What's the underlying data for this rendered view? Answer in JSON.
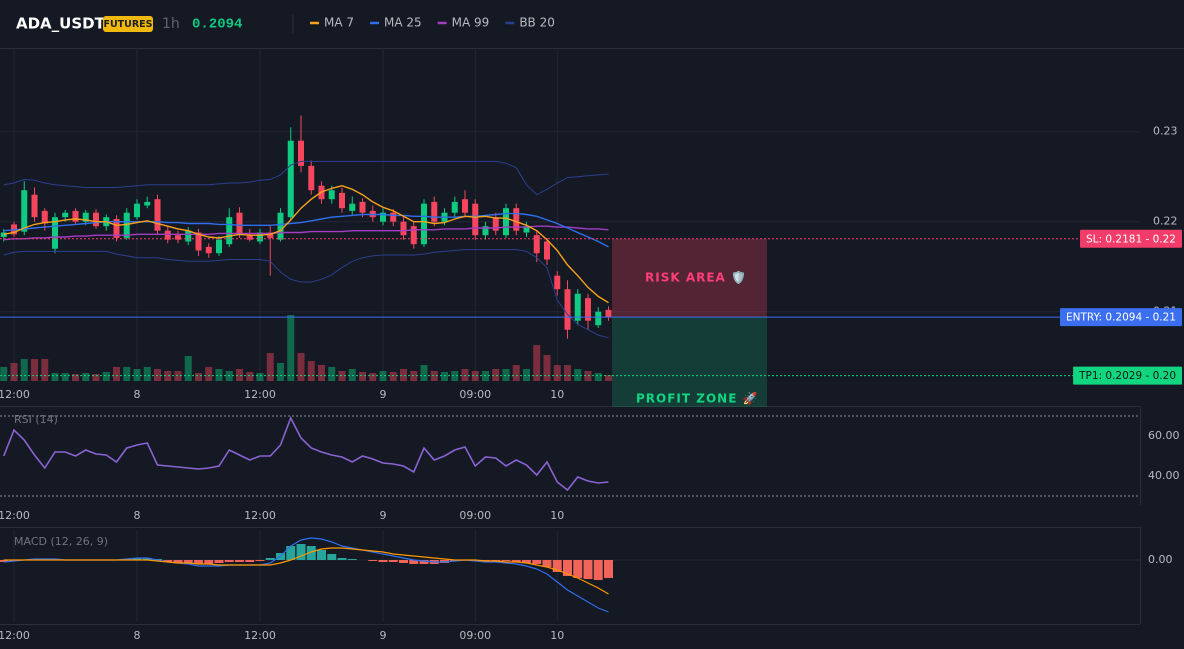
{
  "header": {
    "symbol": "ADA_USDT",
    "badge": "FUTURES",
    "interval": "1h",
    "price": "0.2094"
  },
  "chart_data": [
    {
      "type": "candlestick",
      "xlim": [
        -0.5,
        59.5
      ],
      "xticks": [
        {
          "value": 1,
          "label": "12:00"
        },
        {
          "value": 13,
          "label": "8"
        },
        {
          "value": 25,
          "label": "12:00"
        },
        {
          "value": 37,
          "label": "9"
        },
        {
          "value": 46,
          "label": "09:00"
        },
        {
          "value": 54,
          "label": "10"
        }
      ],
      "ylim": [
        0.2023,
        0.2393
      ],
      "yticks": [
        0.21,
        0.22,
        0.23
      ],
      "grid": true,
      "up_color": "#0ecb81",
      "down_color": "#f6465d",
      "open": [
        0.2183,
        0.2197,
        0.2189,
        0.223,
        0.2212,
        0.217,
        0.2205,
        0.2212,
        0.22,
        0.221,
        0.2195,
        0.2203,
        0.2182,
        0.2205,
        0.2218,
        0.2225,
        0.219,
        0.2185,
        0.2178,
        0.2188,
        0.2172,
        0.2165,
        0.2175,
        0.221,
        0.2185,
        0.2178,
        0.2188,
        0.218,
        0.2205,
        0.229,
        0.2262,
        0.224,
        0.2225,
        0.2232,
        0.2212,
        0.2222,
        0.2212,
        0.22,
        0.221,
        0.22,
        0.2195,
        0.2175,
        0.2222,
        0.22,
        0.221,
        0.2225,
        0.222,
        0.2185,
        0.2205,
        0.2185,
        0.2215,
        0.2188,
        0.2185,
        0.2178,
        0.214,
        0.2125,
        0.209,
        0.2115,
        0.2085,
        0.2102
      ],
      "high": [
        0.2192,
        0.22,
        0.2245,
        0.2238,
        0.2215,
        0.221,
        0.2213,
        0.2215,
        0.2213,
        0.2214,
        0.2208,
        0.2207,
        0.2215,
        0.2225,
        0.2228,
        0.223,
        0.2195,
        0.219,
        0.2194,
        0.2192,
        0.2176,
        0.2184,
        0.2215,
        0.2216,
        0.2192,
        0.2192,
        0.2195,
        0.2215,
        0.2305,
        0.2318,
        0.2268,
        0.2245,
        0.224,
        0.2238,
        0.2228,
        0.2226,
        0.2218,
        0.2215,
        0.2214,
        0.2205,
        0.22,
        0.2225,
        0.2228,
        0.2215,
        0.2228,
        0.2235,
        0.2225,
        0.22,
        0.221,
        0.222,
        0.222,
        0.22,
        0.219,
        0.2182,
        0.2145,
        0.2135,
        0.2125,
        0.212,
        0.2105,
        0.2106
      ],
      "low": [
        0.2178,
        0.2183,
        0.2185,
        0.22,
        0.219,
        0.2165,
        0.22,
        0.2198,
        0.2196,
        0.2192,
        0.219,
        0.2178,
        0.218,
        0.2202,
        0.2215,
        0.2185,
        0.2176,
        0.2176,
        0.2174,
        0.2162,
        0.216,
        0.2162,
        0.2172,
        0.2182,
        0.2178,
        0.2175,
        0.214,
        0.2178,
        0.2202,
        0.2255,
        0.223,
        0.222,
        0.222,
        0.221,
        0.2208,
        0.2205,
        0.22,
        0.2196,
        0.2195,
        0.218,
        0.217,
        0.2172,
        0.2195,
        0.2196,
        0.2205,
        0.2205,
        0.218,
        0.218,
        0.2185,
        0.2182,
        0.2185,
        0.2183,
        0.2155,
        0.2152,
        0.2118,
        0.207,
        0.2085,
        0.208,
        0.2082,
        0.209
      ],
      "close": [
        0.2188,
        0.2186,
        0.2235,
        0.2205,
        0.2198,
        0.2205,
        0.221,
        0.22,
        0.221,
        0.2195,
        0.2205,
        0.2182,
        0.221,
        0.222,
        0.2222,
        0.219,
        0.218,
        0.218,
        0.219,
        0.2168,
        0.2165,
        0.218,
        0.2205,
        0.2185,
        0.218,
        0.2188,
        0.2182,
        0.221,
        0.229,
        0.2262,
        0.2235,
        0.2225,
        0.2235,
        0.2215,
        0.222,
        0.221,
        0.2205,
        0.221,
        0.22,
        0.2185,
        0.2175,
        0.222,
        0.22,
        0.221,
        0.2222,
        0.221,
        0.2185,
        0.2195,
        0.219,
        0.2215,
        0.219,
        0.2195,
        0.2165,
        0.2158,
        0.2125,
        0.208,
        0.212,
        0.209,
        0.21,
        0.2094
      ],
      "vlim": [
        0,
        100
      ],
      "volume": [
        14,
        18,
        22,
        22,
        22,
        8,
        8,
        7,
        8,
        7,
        9,
        14,
        14,
        12,
        14,
        12,
        10,
        10,
        25,
        8,
        14,
        12,
        10,
        12,
        9,
        8,
        28,
        18,
        66,
        28,
        20,
        16,
        14,
        10,
        12,
        9,
        8,
        10,
        9,
        12,
        10,
        16,
        10,
        9,
        10,
        12,
        10,
        10,
        12,
        12,
        16,
        12,
        36,
        26,
        16,
        16,
        12,
        10,
        8,
        6
      ],
      "series": [
        {
          "name": "MA 7",
          "color": "#f7a21b",
          "values": [
            0.2186,
            0.2188,
            0.2193,
            0.2197,
            0.2199,
            0.22,
            0.2202,
            0.2203,
            0.2202,
            0.22,
            0.22,
            0.2196,
            0.2197,
            0.2199,
            0.2201,
            0.2198,
            0.2195,
            0.2192,
            0.219,
            0.2186,
            0.2183,
            0.2182,
            0.2184,
            0.2186,
            0.2185,
            0.2185,
            0.2186,
            0.219,
            0.2202,
            0.2215,
            0.2225,
            0.2233,
            0.2237,
            0.224,
            0.2236,
            0.223,
            0.2222,
            0.2216,
            0.2212,
            0.2206,
            0.22,
            0.22,
            0.2198,
            0.2199,
            0.2203,
            0.2206,
            0.2205,
            0.2206,
            0.2204,
            0.2204,
            0.22,
            0.2196,
            0.219,
            0.218,
            0.2168,
            0.2152,
            0.214,
            0.2127,
            0.2117,
            0.211
          ]
        },
        {
          "name": "MA 25",
          "color": "#2f6fed",
          "values": [
            0.219,
            0.2191,
            0.2192,
            0.2193,
            0.2194,
            0.2195,
            0.2196,
            0.2197,
            0.2198,
            0.2199,
            0.22,
            0.22,
            0.22,
            0.22,
            0.22,
            0.22,
            0.2199,
            0.2199,
            0.2198,
            0.2198,
            0.2198,
            0.2197,
            0.2197,
            0.2196,
            0.2196,
            0.2196,
            0.2196,
            0.2197,
            0.2198,
            0.2199,
            0.2201,
            0.2203,
            0.2205,
            0.2206,
            0.2207,
            0.2208,
            0.2208,
            0.2208,
            0.2207,
            0.2207,
            0.2206,
            0.2206,
            0.2205,
            0.2205,
            0.2205,
            0.2206,
            0.2206,
            0.2207,
            0.2208,
            0.2209,
            0.2209,
            0.2208,
            0.2206,
            0.2202,
            0.2198,
            0.2193,
            0.2188,
            0.2183,
            0.2178,
            0.2172
          ]
        },
        {
          "name": "MA 99",
          "color": "#a43cc4",
          "values": [
            0.218,
            0.2181,
            0.2181,
            0.2182,
            0.2182,
            0.2183,
            0.2183,
            0.2184,
            0.2184,
            0.2185,
            0.2185,
            0.2185,
            0.2185,
            0.2186,
            0.2186,
            0.2186,
            0.2186,
            0.2186,
            0.2186,
            0.2186,
            0.2186,
            0.2187,
            0.2187,
            0.2187,
            0.2187,
            0.2187,
            0.2187,
            0.2188,
            0.2188,
            0.2188,
            0.2189,
            0.2189,
            0.2189,
            0.2189,
            0.219,
            0.219,
            0.219,
            0.219,
            0.219,
            0.219,
            0.2191,
            0.2191,
            0.2191,
            0.2192,
            0.2192,
            0.2192,
            0.2193,
            0.2193,
            0.2193,
            0.2194,
            0.2194,
            0.2194,
            0.2195,
            0.2195,
            0.2194,
            0.2194,
            0.2193,
            0.2192,
            0.2192,
            0.2191
          ]
        },
        {
          "name": "BB 20",
          "color": "#2b3f8f",
          "upper": [
            0.2241,
            0.2243,
            0.2247,
            0.2246,
            0.2243,
            0.2241,
            0.224,
            0.2239,
            0.2238,
            0.2238,
            0.2238,
            0.2238,
            0.2239,
            0.224,
            0.2241,
            0.2241,
            0.2241,
            0.2241,
            0.2241,
            0.2241,
            0.2241,
            0.2242,
            0.2243,
            0.2243,
            0.2244,
            0.2246,
            0.2247,
            0.2252,
            0.2263,
            0.2267,
            0.2267,
            0.2267,
            0.2267,
            0.2267,
            0.2267,
            0.2267,
            0.2267,
            0.2267,
            0.2267,
            0.2267,
            0.2267,
            0.2267,
            0.2267,
            0.2267,
            0.2267,
            0.2267,
            0.2267,
            0.2267,
            0.2267,
            0.2265,
            0.226,
            0.2241,
            0.223,
            0.2236,
            0.2243,
            0.2249,
            0.225,
            0.2251,
            0.2252,
            0.2253
          ],
          "lower": [
            0.2163,
            0.2166,
            0.2167,
            0.2167,
            0.2167,
            0.2167,
            0.2167,
            0.2167,
            0.2167,
            0.2167,
            0.2167,
            0.2164,
            0.2162,
            0.216,
            0.216,
            0.216,
            0.2158,
            0.2157,
            0.2156,
            0.2156,
            0.2156,
            0.2157,
            0.2158,
            0.2158,
            0.2158,
            0.2158,
            0.2156,
            0.2144,
            0.2136,
            0.2133,
            0.2133,
            0.2136,
            0.2141,
            0.2149,
            0.2156,
            0.216,
            0.2162,
            0.2163,
            0.2163,
            0.2163,
            0.2163,
            0.2164,
            0.2166,
            0.2167,
            0.2168,
            0.2169,
            0.2169,
            0.2169,
            0.2169,
            0.2169,
            0.2169,
            0.2167,
            0.216,
            0.2149,
            0.2113,
            0.2097,
            0.2086,
            0.208,
            0.2074,
            0.2071
          ]
        }
      ],
      "levels": [
        {
          "label": "SL: 0.2181 - 0.22",
          "value": 0.2181,
          "color": "#f23d6a",
          "text_color": "#ffffff",
          "line": "dotted"
        },
        {
          "label": "ENTRY: 0.2094 - 0.21",
          "value": 0.2094,
          "color": "#3b6ff0",
          "text_color": "#ffffff",
          "line": "solid"
        },
        {
          "label": "TP1: 0.2029 - 0.20",
          "value": 0.2029,
          "color": "#12d67f",
          "text_color": "#0b1a12",
          "line": "dotted"
        }
      ],
      "zones": [
        {
          "label": "RISK AREA 🛡️",
          "color": "#f6465d",
          "text_color": "#ff3d78"
        },
        {
          "label": "PROFIT ZONE 🚀",
          "color": "#0ecb81",
          "text_color": "#12d67f"
        }
      ]
    },
    {
      "type": "line",
      "title": "RSI (14)",
      "color": "#8a63d2",
      "values": [
        50,
        63,
        58,
        50.5,
        44,
        52,
        52,
        50,
        53,
        51,
        50.5,
        47,
        54,
        55.5,
        56.5,
        45.5,
        45,
        44.5,
        44,
        43.5,
        44,
        45,
        53,
        50.5,
        48,
        50,
        50,
        55.5,
        69,
        59,
        54,
        52,
        50.5,
        49.5,
        47,
        50,
        48.5,
        46.5,
        46,
        45,
        42,
        54,
        48,
        50,
        53,
        54.5,
        45,
        49.5,
        49,
        45,
        48,
        45.5,
        40.5,
        47,
        37,
        33,
        39.5,
        37.5,
        36.5,
        37
      ],
      "ylim": [
        26.5,
        74
      ],
      "yticks": [
        {
          "value": 40,
          "label": "40.00"
        },
        {
          "value": 60,
          "label": "60.00"
        }
      ],
      "bands": [
        30,
        70
      ],
      "grid": false
    },
    {
      "type": "macd",
      "title": "MACD (12, 26, 9)",
      "ylim": [
        -0.00124,
        0.0006
      ],
      "yticks": [
        {
          "value": 0,
          "label": "0.00"
        }
      ],
      "grid": true,
      "histogram": {
        "up_color": "#26a69a",
        "down_color": "#f0645a",
        "values": [
          -4e-05,
          -2e-05,
          0,
          2e-05,
          2e-05,
          2e-05,
          0,
          0,
          0,
          0,
          0,
          0,
          2e-05,
          4e-05,
          4e-05,
          2e-05,
          -4e-05,
          -6e-05,
          -6e-05,
          -8e-05,
          -8e-05,
          -6e-05,
          -4e-05,
          -4e-05,
          -4e-05,
          -2e-05,
          4e-05,
          0.00014,
          0.00028,
          0.00032,
          0.00028,
          0.0002,
          0.00012,
          4e-05,
          2e-05,
          0,
          -2e-05,
          -4e-05,
          -4e-05,
          -6e-05,
          -8e-05,
          -8e-05,
          -8e-05,
          -6e-05,
          -2e-05,
          0,
          -2e-05,
          -2e-05,
          -2e-05,
          -2e-05,
          -4e-05,
          -6e-05,
          -8e-05,
          -0.00014,
          -0.00024,
          -0.00032,
          -0.00036,
          -0.00038,
          -0.0004,
          -0.00036
        ]
      },
      "series": [
        {
          "color": "#2f6fed",
          "values": [
            -4e-05,
            -2e-05,
            0,
            2e-05,
            2e-05,
            2e-05,
            0,
            0,
            0,
            0,
            0,
            0,
            2e-05,
            4e-05,
            4e-05,
            0,
            -4e-05,
            -6e-05,
            -8e-05,
            -0.00012,
            -0.00012,
            -0.00012,
            -0.0001,
            -0.0001,
            -0.0001,
            -0.0001,
            -6e-05,
            8e-05,
            0.00028,
            0.0004,
            0.00044,
            0.00042,
            0.00036,
            0.00028,
            0.00024,
            0.0002,
            0.00016,
            0.00012,
            8e-05,
            4e-05,
            0,
            -2e-05,
            -4e-05,
            -4e-05,
            -2e-05,
            0,
            -2e-05,
            -4e-05,
            -4e-05,
            -6e-05,
            -8e-05,
            -0.00012,
            -0.00018,
            -0.00028,
            -0.00044,
            -0.0006,
            -0.00072,
            -0.00084,
            -0.00096,
            -0.00104
          ]
        },
        {
          "color": "#ff9800",
          "values": [
            0,
            0,
            0,
            0,
            0,
            0,
            0,
            0,
            0,
            0,
            0,
            0,
            0,
            0,
            0,
            -2e-05,
            -4e-05,
            -6e-05,
            -6e-05,
            -8e-05,
            -8e-05,
            -0.0001,
            -0.0001,
            -0.0001,
            -0.0001,
            -0.0001,
            -0.0001,
            -6e-05,
            0,
            8e-05,
            0.00016,
            0.00022,
            0.00024,
            0.00024,
            0.00022,
            0.0002,
            0.00018,
            0.00016,
            0.00012,
            0.0001,
            8e-05,
            6e-05,
            4e-05,
            2e-05,
            0,
            0,
            0,
            -2e-05,
            -2e-05,
            -4e-05,
            -4e-05,
            -6e-05,
            -0.0001,
            -0.00014,
            -0.0002,
            -0.00028,
            -0.00036,
            -0.00046,
            -0.00056,
            -0.00068
          ]
        }
      ]
    }
  ]
}
